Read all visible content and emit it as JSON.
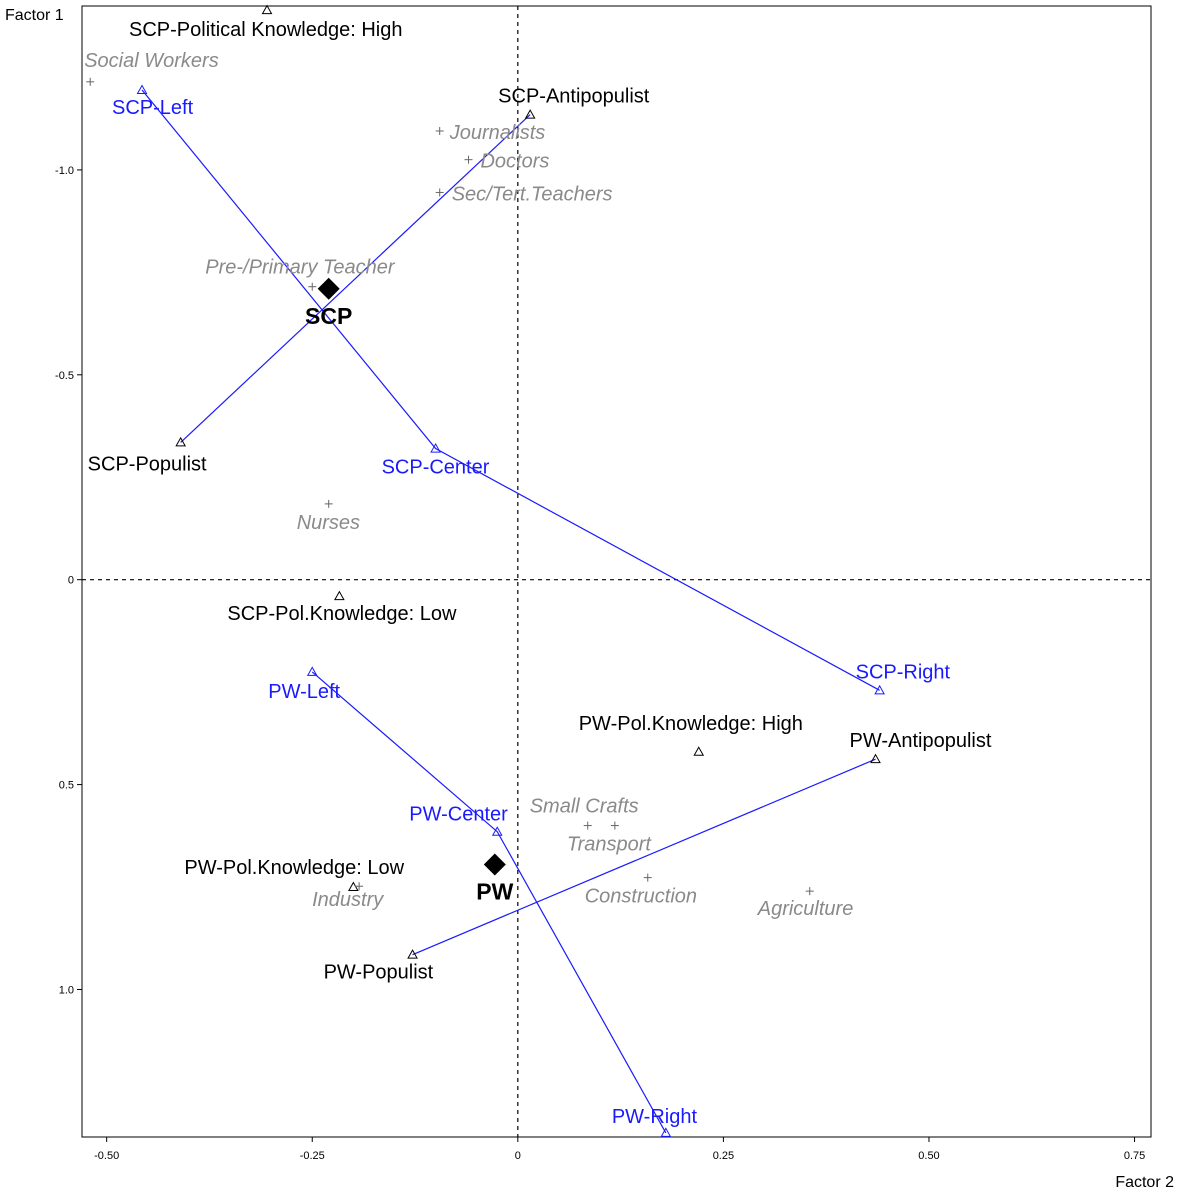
{
  "chart_data": {
    "type": "scatter",
    "xlabel": "Factor 2",
    "ylabel": "Factor 1",
    "xlim": [
      -0.53,
      0.77
    ],
    "ylim": [
      1.36,
      -1.4
    ],
    "y_inverted": true,
    "x_ticks": [
      {
        "value": -0.5,
        "label": "-0.50"
      },
      {
        "value": -0.25,
        "label": "-0.25"
      },
      {
        "value": 0,
        "label": "0"
      },
      {
        "value": 0.25,
        "label": "0.25"
      },
      {
        "value": 0.5,
        "label": "0.50"
      },
      {
        "value": 0.75,
        "label": "0.75"
      }
    ],
    "y_ticks": [
      {
        "value": -1.0,
        "label": "-1.0"
      },
      {
        "value": -0.5,
        "label": "-0.5"
      },
      {
        "value": 0,
        "label": "0"
      },
      {
        "value": 0.5,
        "label": "0.5"
      },
      {
        "value": 1.0,
        "label": "1.0"
      }
    ],
    "reference_lines": {
      "x": 0,
      "y": 0,
      "style": "dashed"
    },
    "colors": {
      "active": "#000000",
      "trajectory": "#1a1aff",
      "supplementary": "#8a8a8a",
      "group": "#000000"
    },
    "active_points": [
      {
        "label": "SCP-Political Knowledge: High",
        "x": -0.305,
        "y": -1.39
      },
      {
        "label": "SCP-Antipopulist",
        "x": 0.015,
        "y": -1.135
      },
      {
        "label": "SCP-Populist",
        "x": -0.41,
        "y": -0.335
      },
      {
        "label": "SCP-Pol.Knowledge: Low",
        "x": -0.217,
        "y": 0.04
      },
      {
        "label": "PW-Pol.Knowledge: High",
        "x": 0.22,
        "y": 0.42
      },
      {
        "label": "PW-Antipopulist",
        "x": 0.435,
        "y": 0.438
      },
      {
        "label": "PW-Pol.Knowledge: Low",
        "x": -0.2,
        "y": 0.75
      },
      {
        "label": "PW-Populist",
        "x": -0.128,
        "y": 0.915
      }
    ],
    "ideology_points": [
      {
        "label": "SCP-Left",
        "x": -0.457,
        "y": -1.195
      },
      {
        "label": "SCP-Center",
        "x": -0.1,
        "y": -0.32
      },
      {
        "label": "SCP-Right",
        "x": 0.44,
        "y": 0.27
      },
      {
        "label": "PW-Left",
        "x": -0.25,
        "y": 0.225
      },
      {
        "label": "PW-Center",
        "x": -0.025,
        "y": 0.615
      },
      {
        "label": "PW-Right",
        "x": 0.18,
        "y": 1.35
      }
    ],
    "supplementary_points": [
      {
        "label": "Social Workers",
        "x": -0.52,
        "y": -1.215
      },
      {
        "label": "Journalists",
        "x": -0.095,
        "y": -1.095
      },
      {
        "label": "Doctors",
        "x": -0.06,
        "y": -1.025
      },
      {
        "label": "Sec/Tert.Teachers",
        "x": -0.095,
        "y": -0.945
      },
      {
        "label": "Pre-/Primary Teacher",
        "x": -0.25,
        "y": -0.715
      },
      {
        "label": "Nurses",
        "x": -0.23,
        "y": -0.185
      },
      {
        "label": "Small Crafts",
        "x": 0.085,
        "y": 0.6
      },
      {
        "label": "Transport",
        "x": 0.118,
        "y": 0.6
      },
      {
        "label": "Construction",
        "x": 0.158,
        "y": 0.727
      },
      {
        "label": "Agriculture",
        "x": 0.355,
        "y": 0.76
      },
      {
        "label": "Industry",
        "x": -0.193,
        "y": 0.748
      }
    ],
    "group_points": [
      {
        "label": "SCP",
        "x": -0.23,
        "y": -0.71
      },
      {
        "label": "PW",
        "x": -0.028,
        "y": 0.695
      }
    ],
    "connector_lines": [
      {
        "from": "SCP-Populist",
        "to": "SCP-Antipopulist",
        "color": "#1a1aff"
      },
      {
        "from": "PW-Populist",
        "to": "PW-Antipopulist",
        "color": "#1a1aff"
      },
      {
        "path": [
          "SCP-Left",
          "SCP-Center",
          "SCP-Right"
        ],
        "color": "#1a1aff"
      },
      {
        "path": [
          "PW-Left",
          "PW-Center",
          "PW-Right"
        ],
        "color": "#1a1aff"
      }
    ]
  }
}
